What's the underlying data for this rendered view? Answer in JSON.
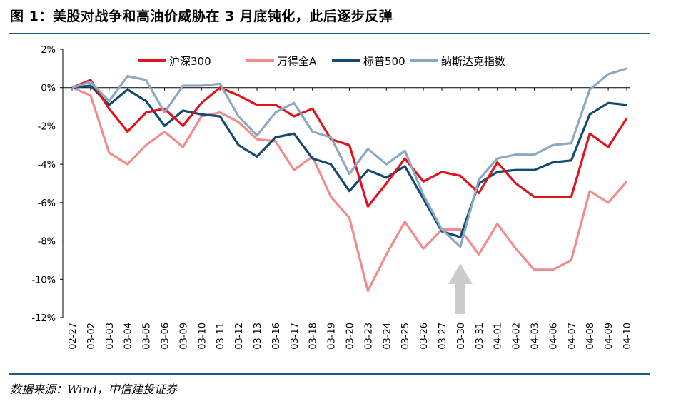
{
  "header": {
    "title": "图 1：美股对战争和高油价威胁在 3 月底钝化，此后逐步反弹"
  },
  "footer": {
    "source": "数据来源：Wind，中信建投证券"
  },
  "chart_data": {
    "type": "line",
    "title": "美股对战争和高油价威胁在 3 月底钝化，此后逐步反弹",
    "xlabel": "",
    "ylabel": "",
    "ylim": [
      -12,
      2
    ],
    "yticks": [
      2,
      0,
      -2,
      -4,
      -6,
      -8,
      -10,
      -12
    ],
    "ytick_labels": [
      "2%",
      "0%",
      "-2%",
      "-4%",
      "-6%",
      "-8%",
      "-10%",
      "-12%"
    ],
    "grid": false,
    "legend_position": "top",
    "categories": [
      "02-27",
      "03-02",
      "03-03",
      "03-04",
      "03-05",
      "03-06",
      "03-09",
      "03-10",
      "03-11",
      "03-12",
      "03-13",
      "03-16",
      "03-17",
      "03-18",
      "03-19",
      "03-20",
      "03-23",
      "03-24",
      "03-25",
      "03-26",
      "03-27",
      "03-30",
      "03-31",
      "04-01",
      "04-02",
      "04-03",
      "04-06",
      "04-07",
      "04-08",
      "04-09",
      "04-10"
    ],
    "series": [
      {
        "name": "沪深300",
        "color": "#e0141e",
        "values": [
          0.0,
          0.4,
          -1.1,
          -2.3,
          -1.3,
          -1.1,
          -2.0,
          -0.8,
          0.0,
          -0.4,
          -0.9,
          -0.9,
          -1.5,
          -1.1,
          -2.7,
          -3.0,
          -6.2,
          -5.0,
          -3.7,
          -4.9,
          -4.4,
          -4.6,
          -5.5,
          -3.9,
          -5.0,
          -5.7,
          -5.7,
          -5.7,
          -2.4,
          -3.1,
          -1.6
        ]
      },
      {
        "name": "万得全A",
        "color": "#f08c8c",
        "values": [
          0.0,
          -0.4,
          -3.4,
          -4.0,
          -3.0,
          -2.3,
          -3.1,
          -1.5,
          -1.3,
          -1.8,
          -2.7,
          -2.8,
          -4.3,
          -3.6,
          -5.7,
          -6.8,
          -10.6,
          -8.7,
          -7.0,
          -8.4,
          -7.4,
          -7.4,
          -8.7,
          -7.1,
          -8.4,
          -9.5,
          -9.5,
          -9.0,
          -5.4,
          -6.0,
          -4.9
        ]
      },
      {
        "name": "标普500",
        "color": "#114a72",
        "values": [
          0.0,
          0.1,
          -0.9,
          -0.1,
          -0.7,
          -2.0,
          -1.2,
          -1.4,
          -1.5,
          -3.0,
          -3.6,
          -2.6,
          -2.4,
          -3.7,
          -4.0,
          -5.4,
          -4.3,
          -4.7,
          -4.1,
          -5.8,
          -7.5,
          -7.8,
          -5.0,
          -4.4,
          -4.3,
          -4.3,
          -3.9,
          -3.8,
          -1.4,
          -0.8,
          -0.9
        ]
      },
      {
        "name": "纳斯达克指数",
        "color": "#8ca9bf",
        "values": [
          0.0,
          0.3,
          -0.7,
          0.6,
          0.4,
          -1.3,
          0.1,
          0.1,
          0.2,
          -1.5,
          -2.5,
          -1.3,
          -0.8,
          -2.3,
          -2.6,
          -4.5,
          -3.2,
          -4.0,
          -3.3,
          -5.6,
          -7.4,
          -8.3,
          -4.8,
          -3.7,
          -3.5,
          -3.5,
          -3.0,
          -2.9,
          -0.1,
          0.7,
          1.0
        ]
      }
    ],
    "annotation": {
      "type": "up-arrow",
      "at_category": "03-30",
      "color": "#cccccc"
    }
  }
}
